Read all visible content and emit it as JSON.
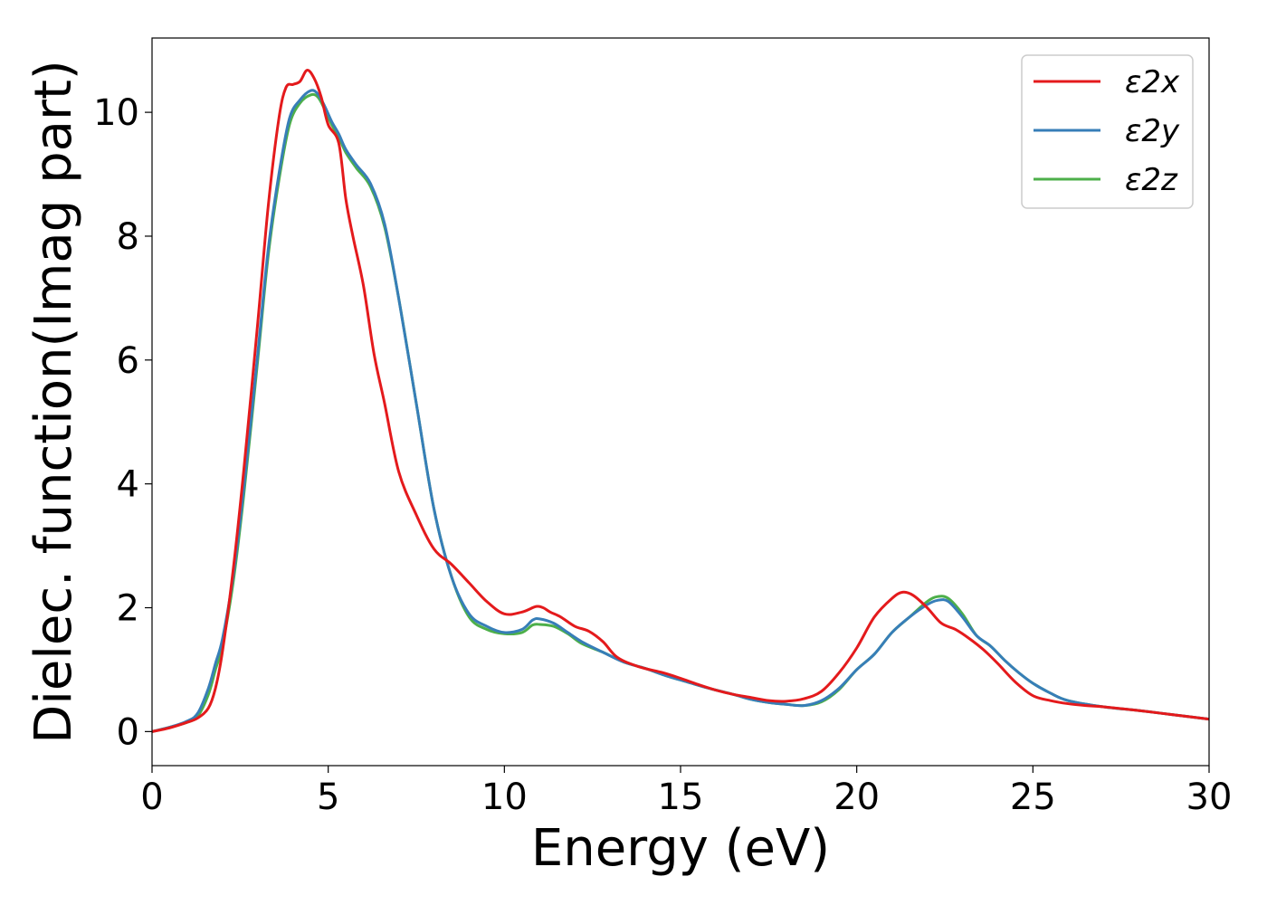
{
  "chart_data": {
    "type": "line",
    "title": "",
    "xlabel": "Energy (eV)",
    "ylabel": "Dielec. function(Imag part)",
    "xlim": [
      0,
      30
    ],
    "ylim": [
      -0.55,
      11.2
    ],
    "xticks": [
      0,
      5,
      10,
      15,
      20,
      25,
      30
    ],
    "yticks": [
      0,
      2,
      4,
      6,
      8,
      10
    ],
    "grid": false,
    "legend_position": "top-right",
    "series": [
      {
        "name": "ε2x",
        "color": "#e41a1c",
        "x": [
          0,
          0.5,
          1.0,
          1.3,
          1.6,
          1.8,
          2.0,
          2.3,
          2.6,
          3.0,
          3.3,
          3.6,
          3.8,
          4.0,
          4.2,
          4.4,
          4.6,
          4.8,
          5.0,
          5.3,
          5.5,
          5.7,
          6.0,
          6.3,
          6.6,
          7.0,
          7.5,
          8.0,
          8.5,
          9.0,
          9.5,
          10.0,
          10.5,
          10.9,
          11.1,
          11.3,
          11.6,
          12.0,
          12.4,
          12.8,
          13.2,
          13.8,
          14.5,
          15.0,
          15.5,
          16.0,
          16.5,
          17.0,
          17.5,
          18.0,
          18.5,
          19.0,
          19.5,
          20.0,
          20.5,
          21.0,
          21.3,
          21.6,
          22.0,
          22.4,
          22.8,
          23.2,
          23.6,
          24.0,
          24.5,
          25.0,
          25.5,
          26.0,
          26.5,
          27.0,
          28.0,
          29.0,
          30.0
        ],
        "y": [
          0,
          0.06,
          0.15,
          0.22,
          0.38,
          0.7,
          1.3,
          2.6,
          4.2,
          6.6,
          8.5,
          9.9,
          10.4,
          10.45,
          10.5,
          10.68,
          10.55,
          10.25,
          9.8,
          9.5,
          8.6,
          8.0,
          7.2,
          6.1,
          5.3,
          4.2,
          3.5,
          2.95,
          2.7,
          2.4,
          2.1,
          1.9,
          1.93,
          2.02,
          2.0,
          1.93,
          1.85,
          1.7,
          1.62,
          1.45,
          1.2,
          1.05,
          0.95,
          0.86,
          0.76,
          0.67,
          0.6,
          0.55,
          0.5,
          0.49,
          0.53,
          0.65,
          0.95,
          1.35,
          1.85,
          2.15,
          2.25,
          2.2,
          2.0,
          1.75,
          1.65,
          1.5,
          1.32,
          1.1,
          0.8,
          0.58,
          0.5,
          0.45,
          0.42,
          0.4,
          0.34,
          0.27,
          0.2
        ]
      },
      {
        "name": "ε2y",
        "color": "#377eb8",
        "x": [
          0,
          0.5,
          1.0,
          1.3,
          1.6,
          1.8,
          2.0,
          2.3,
          2.6,
          3.0,
          3.3,
          3.6,
          3.9,
          4.2,
          4.5,
          4.7,
          4.9,
          5.1,
          5.3,
          5.5,
          5.8,
          6.2,
          6.6,
          7.0,
          7.5,
          8.0,
          8.5,
          9.0,
          9.5,
          10.0,
          10.5,
          10.8,
          11.0,
          11.4,
          11.8,
          12.2,
          12.8,
          13.4,
          14.0,
          14.6,
          15.2,
          15.8,
          16.5,
          17.0,
          17.5,
          18.0,
          18.5,
          19.0,
          19.5,
          20.0,
          20.5,
          21.0,
          21.5,
          22.0,
          22.3,
          22.6,
          23.0,
          23.4,
          23.8,
          24.2,
          24.6,
          25.0,
          25.5,
          26.0,
          27.0,
          28.0,
          29.0,
          30.0
        ],
        "y": [
          0,
          0.07,
          0.17,
          0.3,
          0.7,
          1.1,
          1.5,
          2.5,
          3.9,
          6.1,
          7.8,
          9.0,
          9.9,
          10.2,
          10.35,
          10.3,
          10.1,
          9.85,
          9.65,
          9.4,
          9.15,
          8.85,
          8.2,
          7.0,
          5.3,
          3.6,
          2.5,
          1.9,
          1.7,
          1.6,
          1.65,
          1.8,
          1.82,
          1.75,
          1.6,
          1.45,
          1.28,
          1.12,
          1.02,
          0.9,
          0.8,
          0.7,
          0.6,
          0.52,
          0.47,
          0.44,
          0.42,
          0.5,
          0.7,
          1.0,
          1.25,
          1.6,
          1.85,
          2.05,
          2.12,
          2.1,
          1.85,
          1.55,
          1.38,
          1.15,
          0.95,
          0.78,
          0.62,
          0.5,
          0.4,
          0.34,
          0.27,
          0.2
        ]
      },
      {
        "name": "ε2z",
        "color": "#4daf4a",
        "x": [
          0,
          0.5,
          1.0,
          1.3,
          1.6,
          1.8,
          2.0,
          2.3,
          2.6,
          3.0,
          3.3,
          3.6,
          3.9,
          4.2,
          4.5,
          4.7,
          4.9,
          5.1,
          5.3,
          5.5,
          5.8,
          6.2,
          6.6,
          7.0,
          7.5,
          8.0,
          8.5,
          9.0,
          9.5,
          10.0,
          10.5,
          10.8,
          11.0,
          11.4,
          11.8,
          12.2,
          12.8,
          13.4,
          14.0,
          14.6,
          15.2,
          15.8,
          16.5,
          17.0,
          17.5,
          18.0,
          18.5,
          19.0,
          19.5,
          20.0,
          20.5,
          21.0,
          21.5,
          22.0,
          22.3,
          22.6,
          23.0,
          23.4,
          23.8,
          24.2,
          24.6,
          25.0,
          25.5,
          26.0,
          27.0,
          28.0,
          29.0,
          30.0
        ],
        "y": [
          0,
          0.07,
          0.15,
          0.25,
          0.6,
          1.0,
          1.4,
          2.4,
          3.8,
          6.0,
          7.7,
          8.9,
          9.8,
          10.15,
          10.28,
          10.25,
          10.05,
          9.8,
          9.6,
          9.35,
          9.1,
          8.8,
          8.15,
          7.0,
          5.3,
          3.6,
          2.5,
          1.85,
          1.65,
          1.58,
          1.6,
          1.72,
          1.73,
          1.7,
          1.58,
          1.42,
          1.28,
          1.12,
          1.02,
          0.9,
          0.8,
          0.7,
          0.6,
          0.52,
          0.47,
          0.44,
          0.42,
          0.48,
          0.68,
          1.0,
          1.25,
          1.6,
          1.85,
          2.1,
          2.18,
          2.15,
          1.9,
          1.55,
          1.38,
          1.15,
          0.95,
          0.78,
          0.62,
          0.5,
          0.4,
          0.34,
          0.27,
          0.2
        ]
      }
    ]
  }
}
